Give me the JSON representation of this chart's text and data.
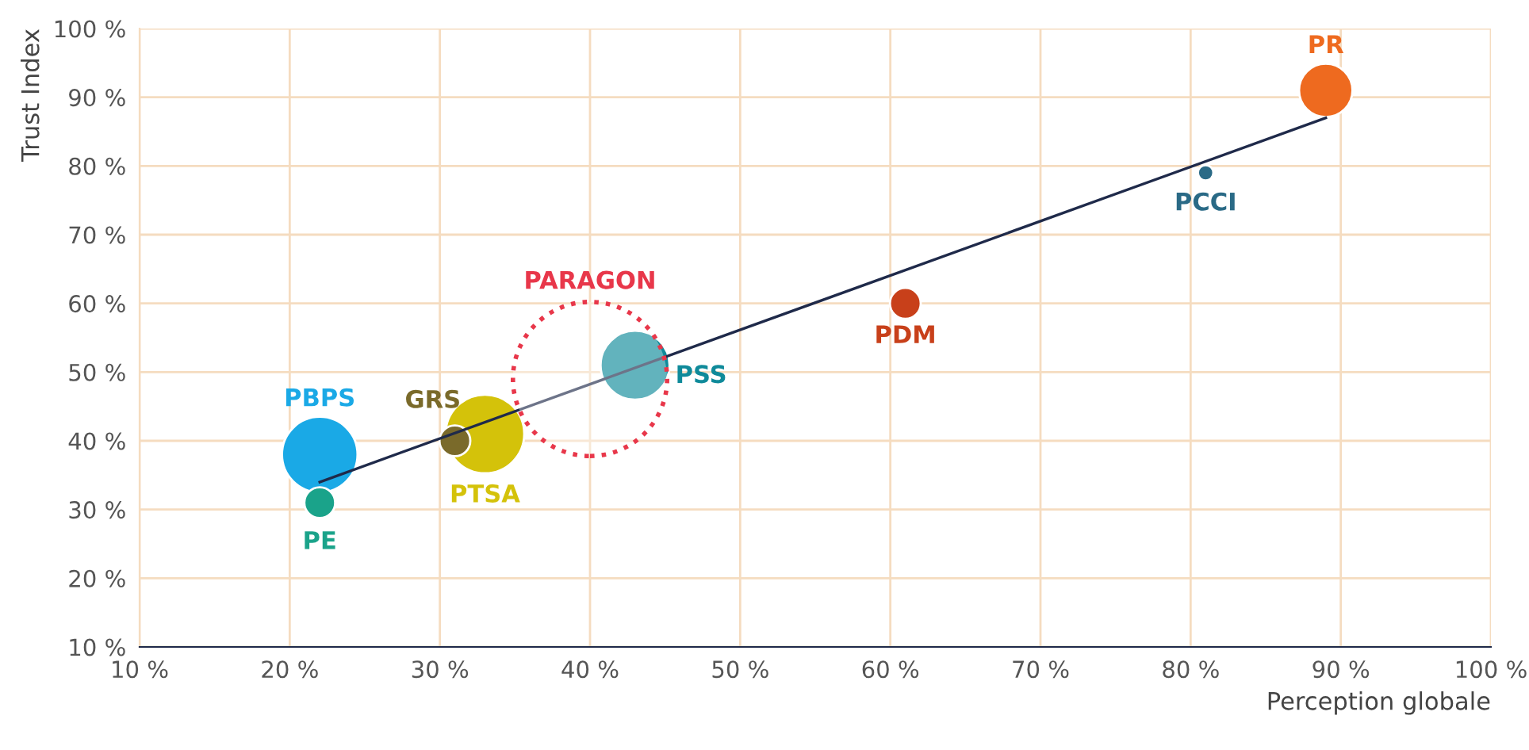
{
  "chart_data": {
    "type": "bubble",
    "xlabel": "Perception globale",
    "ylabel": "Trust Index",
    "xlim": [
      10,
      100
    ],
    "ylim": [
      10,
      100
    ],
    "xticks": [
      {
        "value": 10,
        "label": "10 %"
      },
      {
        "value": 20,
        "label": "20 %"
      },
      {
        "value": 30,
        "label": "30 %"
      },
      {
        "value": 40,
        "label": "40 %"
      },
      {
        "value": 50,
        "label": "50 %"
      },
      {
        "value": 60,
        "label": "60 %"
      },
      {
        "value": 70,
        "label": "70 %"
      },
      {
        "value": 80,
        "label": "80 %"
      },
      {
        "value": 90,
        "label": "90 %"
      },
      {
        "value": 100,
        "label": "100 %"
      }
    ],
    "yticks": [
      {
        "value": 10,
        "label": "10 %"
      },
      {
        "value": 20,
        "label": "20 %"
      },
      {
        "value": 30,
        "label": "30 %"
      },
      {
        "value": 40,
        "label": "40 %"
      },
      {
        "value": 50,
        "label": "50 %"
      },
      {
        "value": 60,
        "label": "60 %"
      },
      {
        "value": 70,
        "label": "70 %"
      },
      {
        "value": 80,
        "label": "80 %"
      },
      {
        "value": 90,
        "label": "90 %"
      },
      {
        "value": 100,
        "label": "100 %"
      }
    ],
    "grid": true,
    "legend": false,
    "series": [
      {
        "type": "line",
        "color": "#1f2a4a",
        "x": [
          22,
          89
        ],
        "values": [
          34,
          87
        ]
      },
      {
        "name": "PR",
        "color": "#ee6a1f",
        "x": [
          89
        ],
        "values": [
          91
        ],
        "sizes": [
          0.12
        ]
      },
      {
        "name": "PCCI",
        "color": "#2a6a86",
        "x": [
          81
        ],
        "values": [
          79
        ],
        "sizes": [
          0.01
        ]
      },
      {
        "name": "PDM",
        "color": "#c8401a",
        "x": [
          61
        ],
        "values": [
          60
        ],
        "sizes": [
          0.04
        ]
      },
      {
        "name": "PSS",
        "color": "#0f8a9a",
        "x": [
          43
        ],
        "values": [
          51
        ],
        "sizes": [
          0.2
        ]
      },
      {
        "name": "PARAGON",
        "color": "#e8374a",
        "x": [
          40
        ],
        "values": [
          49
        ],
        "sizes": [
          1
        ],
        "line_style": "dotted"
      },
      {
        "name": "PTSA",
        "color": "#d4c20a",
        "x": [
          33
        ],
        "values": [
          41
        ],
        "sizes": [
          0.26
        ]
      },
      {
        "name": "GRS",
        "color": "#7a6a2a",
        "x": [
          31
        ],
        "values": [
          40
        ],
        "sizes": [
          0.04
        ]
      },
      {
        "name": "PBPS",
        "color": "#1aa9e6",
        "x": [
          22
        ],
        "values": [
          38
        ],
        "sizes": [
          0.24
        ]
      },
      {
        "name": "PE",
        "color": "#1aa38a",
        "x": [
          22
        ],
        "values": [
          31
        ],
        "sizes": [
          0.04
        ]
      }
    ]
  }
}
